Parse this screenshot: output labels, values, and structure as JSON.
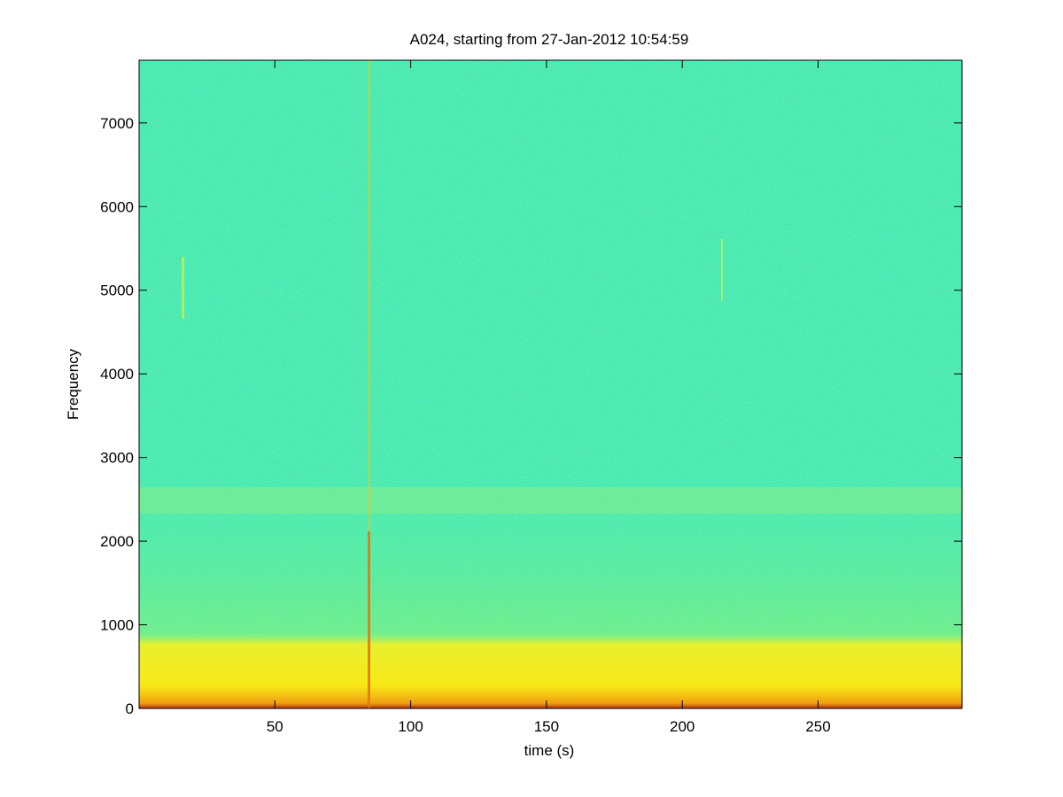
{
  "chart_data": {
    "type": "spectrogram",
    "title": "A024, starting from 27-Jan-2012 10:54:59",
    "xlabel": "time (s)",
    "ylabel": "Frequency",
    "xlim": [
      0,
      303
    ],
    "xticks": [
      50,
      100,
      150,
      200,
      250
    ],
    "ylim": [
      0,
      7750
    ],
    "yticks": [
      0,
      1000,
      2000,
      3000,
      4000,
      5000,
      6000,
      7000
    ]
  }
}
